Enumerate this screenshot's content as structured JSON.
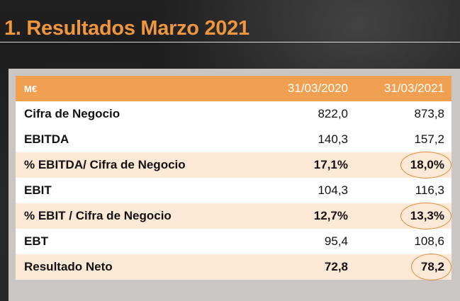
{
  "title": "1. Resultados Marzo 2021",
  "table": {
    "header": {
      "label": "M€",
      "col_a": "31/03/2020",
      "col_b": "31/03/2021"
    },
    "rows": [
      {
        "label": "Cifra de Negocio",
        "a": "822,0",
        "b": "873,8",
        "highlight": false,
        "bold": false,
        "circled": false
      },
      {
        "label": "EBITDA",
        "a": "140,3",
        "b": "157,2",
        "highlight": false,
        "bold": false,
        "circled": false
      },
      {
        "label": "% EBITDA/ Cifra de Negocio",
        "a": "17,1%",
        "b": "18,0%",
        "highlight": true,
        "bold": true,
        "circled": true
      },
      {
        "label": "EBIT",
        "a": "104,3",
        "b": "116,3",
        "highlight": false,
        "bold": false,
        "circled": false
      },
      {
        "label": "% EBIT / Cifra de Negocio",
        "a": "12,7%",
        "b": "13,3%",
        "highlight": true,
        "bold": true,
        "circled": true
      },
      {
        "label": "EBT",
        "a": "95,4",
        "b": "108,6",
        "highlight": false,
        "bold": false,
        "circled": false
      },
      {
        "label": "Resultado Neto",
        "a": "72,8",
        "b": "78,2",
        "highlight": true,
        "bold": true,
        "circled": true
      }
    ]
  },
  "colors": {
    "title": "#f0963c",
    "header_bg": "#f0a050",
    "tint_row": "#fde9d6",
    "circle": "#e58a3a"
  }
}
